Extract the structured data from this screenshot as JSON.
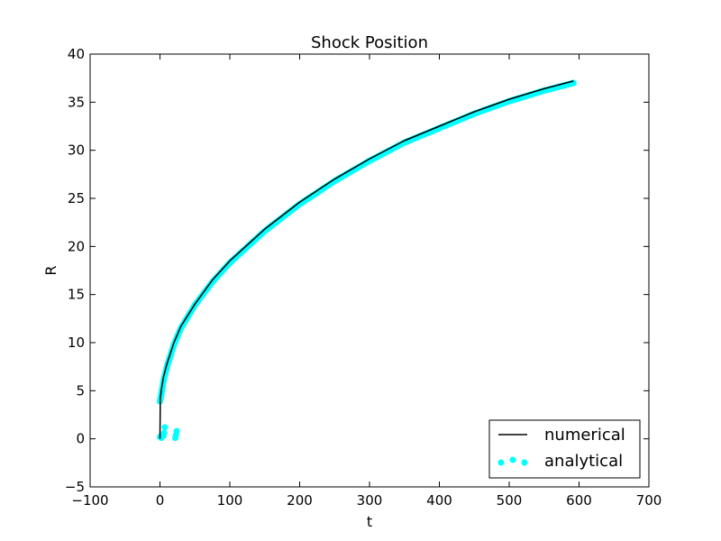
{
  "chart_data": {
    "type": "line",
    "title": "Shock Position",
    "xlabel": "t",
    "ylabel": "R",
    "xlim": [
      -100,
      700
    ],
    "ylim": [
      -5,
      40
    ],
    "xticks": [
      -100,
      0,
      100,
      200,
      300,
      400,
      500,
      600,
      700
    ],
    "yticks": [
      -5,
      0,
      5,
      10,
      15,
      20,
      25,
      30,
      35,
      40
    ],
    "xtick_labels": [
      "−100",
      "0",
      "100",
      "200",
      "300",
      "400",
      "500",
      "600",
      "700"
    ],
    "ytick_labels": [
      "−5",
      "0",
      "5",
      "10",
      "15",
      "20",
      "25",
      "30",
      "35",
      "40"
    ],
    "legend_position": "lower-right",
    "series": [
      {
        "name": "numerical",
        "style": "line",
        "color": "#000000",
        "x": [
          0,
          0.5,
          2,
          5,
          10,
          20,
          30,
          50,
          75,
          100,
          150,
          200,
          250,
          300,
          350,
          400,
          450,
          500,
          550,
          592
        ],
        "y": [
          0,
          4.2,
          5.1,
          6.4,
          7.8,
          10.0,
          11.7,
          14.0,
          16.5,
          18.5,
          21.8,
          24.6,
          27.0,
          29.1,
          31.0,
          32.5,
          34.0,
          35.3,
          36.4,
          37.2
        ]
      },
      {
        "name": "analytical",
        "style": "scatter",
        "color": "#00ffff",
        "x": [
          0,
          2,
          5,
          10,
          20,
          30,
          50,
          75,
          100,
          150,
          200,
          250,
          300,
          350,
          400,
          450,
          500,
          550,
          592,
          0,
          2,
          5,
          6,
          7,
          22,
          23,
          24
        ],
        "y": [
          3.9,
          4.6,
          6.0,
          7.5,
          9.8,
          11.5,
          13.9,
          16.3,
          18.3,
          21.6,
          24.4,
          26.8,
          28.9,
          30.8,
          32.3,
          33.8,
          35.1,
          36.2,
          37.0,
          0.2,
          0.1,
          0.3,
          0.6,
          1.2,
          0.1,
          0.4,
          0.8
        ]
      }
    ]
  }
}
